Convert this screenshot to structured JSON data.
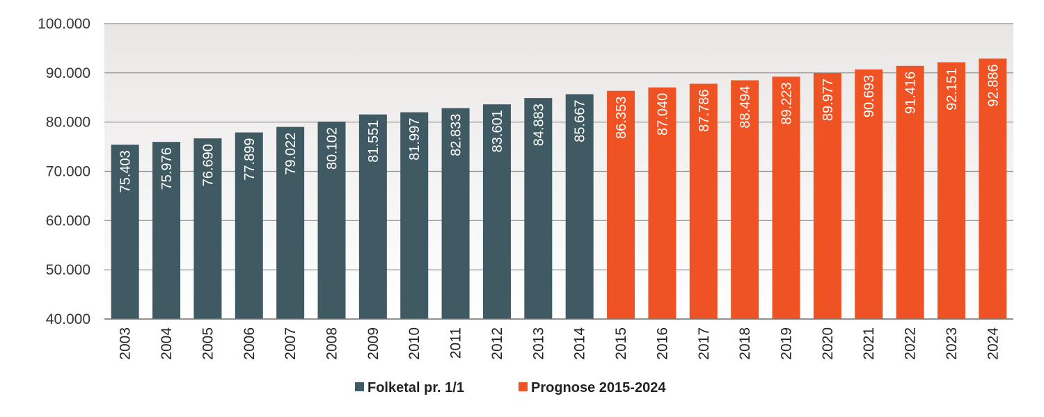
{
  "chart_data": {
    "type": "bar",
    "categories": [
      "2003",
      "2004",
      "2005",
      "2006",
      "2007",
      "2008",
      "2009",
      "2010",
      "2011",
      "2012",
      "2013",
      "2014",
      "2015",
      "2016",
      "2017",
      "2018",
      "2019",
      "2020",
      "2021",
      "2022",
      "2023",
      "2024"
    ],
    "values": [
      75403,
      75976,
      76690,
      77899,
      79022,
      80102,
      81551,
      81997,
      82833,
      83601,
      84883,
      85667,
      86353,
      87040,
      87786,
      88494,
      89223,
      89977,
      90693,
      91416,
      92151,
      92886
    ],
    "value_labels": [
      "75.403",
      "75.976",
      "76.690",
      "77.899",
      "79.022",
      "80.102",
      "81.551",
      "81.997",
      "82.833",
      "83.601",
      "84.883",
      "85.667",
      "86.353",
      "87.040",
      "87.786",
      "88.494",
      "89.223",
      "89.977",
      "90.693",
      "91.416",
      "92.151",
      "92.886"
    ],
    "series": [
      {
        "name": "Folketal pr. 1/1",
        "color": "#3f5a63",
        "categories": [
          "2003",
          "2004",
          "2005",
          "2006",
          "2007",
          "2008",
          "2009",
          "2010",
          "2011",
          "2012",
          "2013",
          "2014"
        ]
      },
      {
        "name": "Prognose 2015-2024",
        "color": "#f05323",
        "categories": [
          "2015",
          "2016",
          "2017",
          "2018",
          "2019",
          "2020",
          "2021",
          "2022",
          "2023",
          "2024"
        ]
      }
    ],
    "ylim": [
      40000,
      100000
    ],
    "yticks": [
      40000,
      50000,
      60000,
      70000,
      80000,
      90000,
      100000
    ],
    "ytick_labels": [
      "40.000",
      "50.000",
      "60.000",
      "70.000",
      "80.000",
      "90.000",
      "100.000"
    ],
    "grid": true,
    "legend_position": "bottom-center"
  }
}
